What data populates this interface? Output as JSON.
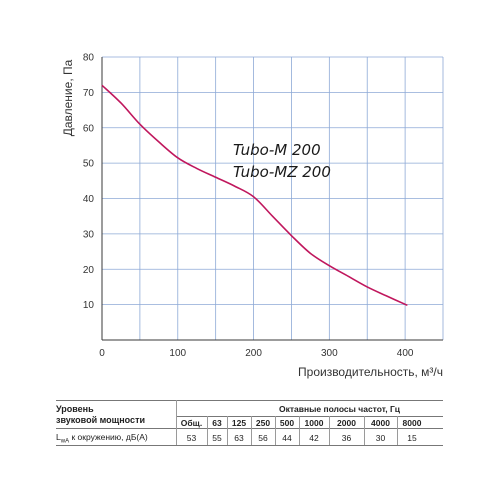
{
  "chart_data": {
    "type": "line",
    "xlabel": "Производительность, м³/ч",
    "ylabel": "Давление, Па",
    "xlim": [
      0,
      450
    ],
    "ylim": [
      0,
      80
    ],
    "x_ticks": [
      "0",
      "100",
      "200",
      "300",
      "400"
    ],
    "y_ticks": [
      "10",
      "20",
      "30",
      "40",
      "50",
      "60",
      "70",
      "80"
    ],
    "grid": true,
    "annotations": [
      "Tubo-M 200",
      "Tubo-MZ 200"
    ],
    "series": [
      {
        "color": "#c0175d",
        "points": [
          [
            0,
            72
          ],
          [
            25,
            67
          ],
          [
            50,
            61
          ],
          [
            75,
            56
          ],
          [
            100,
            51.5
          ],
          [
            125,
            48.5
          ],
          [
            150,
            46
          ],
          [
            175,
            43.5
          ],
          [
            200,
            40.5
          ],
          [
            225,
            35
          ],
          [
            250,
            29.5
          ],
          [
            275,
            24.5
          ],
          [
            300,
            21
          ],
          [
            325,
            18
          ],
          [
            350,
            15
          ],
          [
            375,
            12.5
          ],
          [
            403,
            9.8
          ]
        ]
      }
    ]
  },
  "sound_table": {
    "row_label_line1": "Уровень",
    "row_label_line2": "звуковой мощности",
    "group_header": "Октавные полосы частот, Гц",
    "columns": [
      "Общ.",
      "63",
      "125",
      "250",
      "500",
      "1000",
      "2000",
      "4000",
      "8000"
    ],
    "row_name_prefix": "L",
    "row_name_sub": "wA",
    "row_name_rest": " к окружению, дБ(А)",
    "values": [
      "53",
      "55",
      "63",
      "56",
      "44",
      "42",
      "36",
      "30",
      "15"
    ]
  },
  "colors": {
    "curve": "#c0175d",
    "grid": "#8da9d6",
    "axis": "#3a3a3a"
  }
}
